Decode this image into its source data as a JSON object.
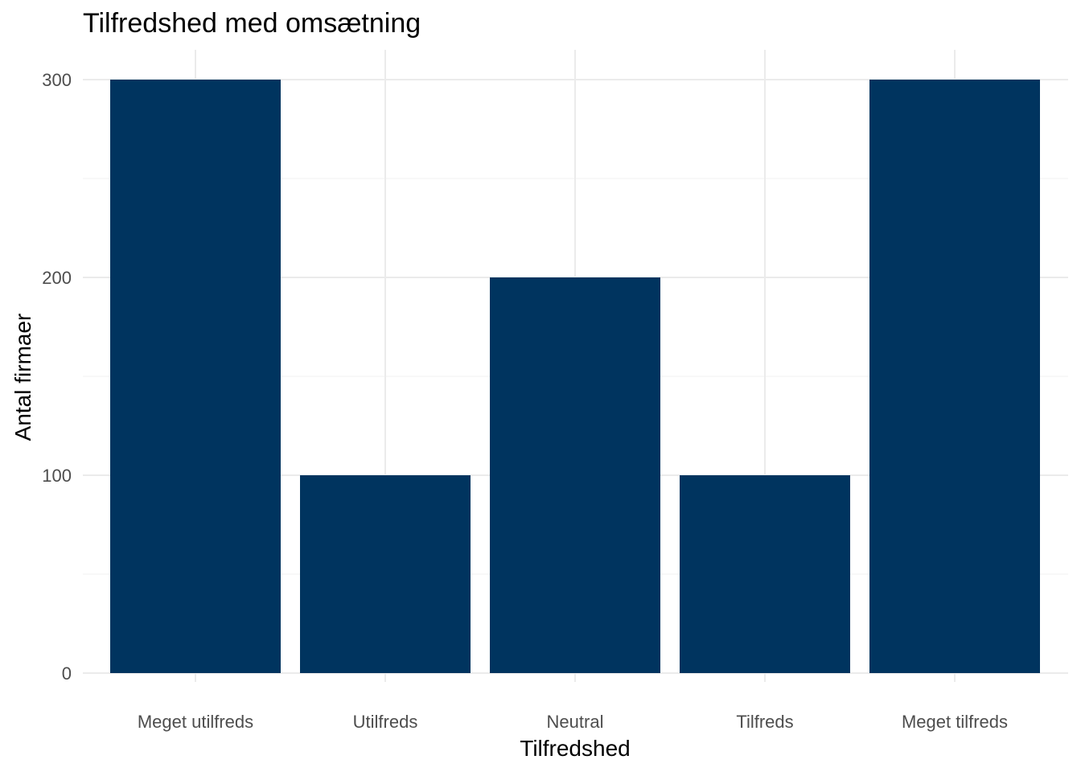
{
  "chart_data": {
    "type": "bar",
    "title": "Tilfredshed med omsætning",
    "xlabel": "Tilfredshed",
    "ylabel": "Antal firmaer",
    "categories": [
      "Meget utilfreds",
      "Utilfreds",
      "Neutral",
      "Tilfreds",
      "Meget tilfreds"
    ],
    "values": [
      300,
      100,
      200,
      100,
      300
    ],
    "ylim": [
      0,
      315
    ],
    "yticks": [
      0,
      100,
      200,
      300
    ],
    "ytick_labels": [
      "0",
      "100",
      "200",
      "300"
    ],
    "grid": true,
    "legend": "none",
    "bar_color": "#00345f"
  }
}
